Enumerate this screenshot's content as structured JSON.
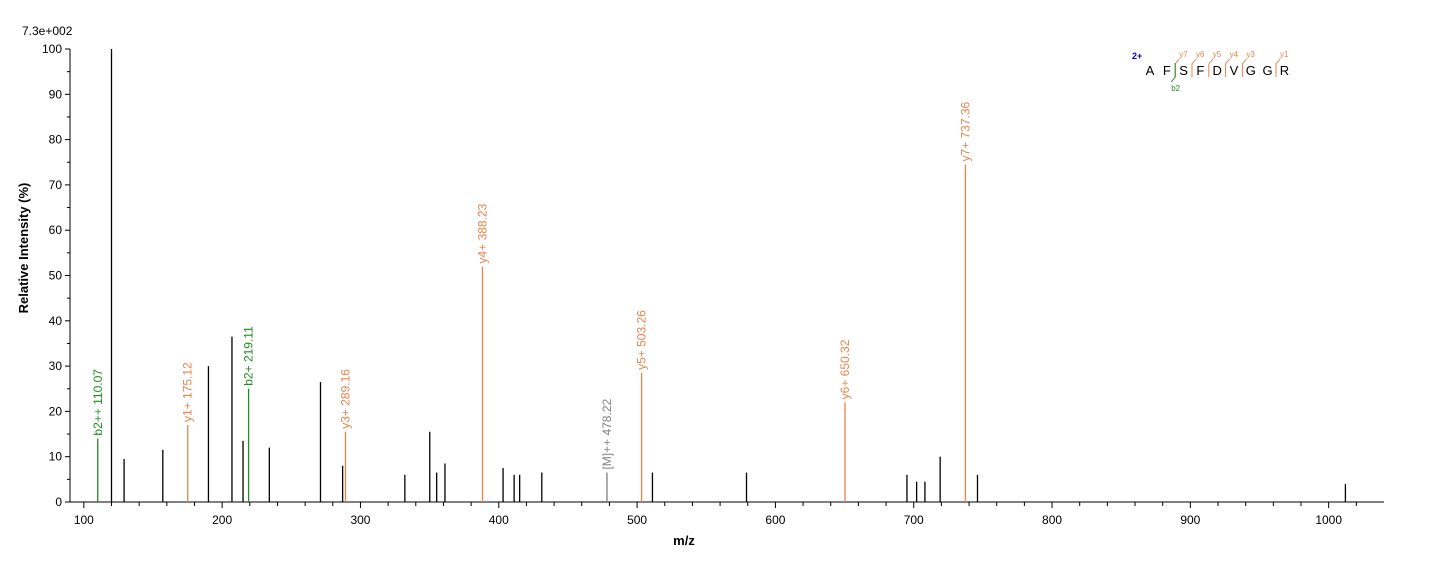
{
  "chart_data": {
    "type": "bar",
    "scale_label": "7.3e+002",
    "xlabel": "m/z",
    "ylabel": "Relative  Intensity (%)",
    "xlim": [
      90,
      1040
    ],
    "ylim": [
      0,
      100
    ],
    "x_ticks": [
      100,
      200,
      300,
      400,
      500,
      600,
      700,
      800,
      900,
      1000
    ],
    "y_ticks": [
      0,
      10,
      20,
      30,
      40,
      50,
      60,
      70,
      80,
      90,
      100
    ],
    "grid": false,
    "colors": {
      "unannotated": "#000000",
      "y_ion": "#E8834A",
      "b_ion": "#1E8C1E",
      "precursor": "#808080",
      "charge": "#0000C8"
    },
    "peaks": [
      {
        "mz": 110.07,
        "intensity": 14.0,
        "type": "b",
        "label": "b2++ 110.07"
      },
      {
        "mz": 120.0,
        "intensity": 100.0,
        "type": "other",
        "label": ""
      },
      {
        "mz": 129.1,
        "intensity": 9.5,
        "type": "other",
        "label": ""
      },
      {
        "mz": 157.1,
        "intensity": 11.5,
        "type": "other",
        "label": ""
      },
      {
        "mz": 175.12,
        "intensity": 17.0,
        "type": "y",
        "label": "y1+ 175.12"
      },
      {
        "mz": 190.1,
        "intensity": 30.0,
        "type": "other",
        "label": ""
      },
      {
        "mz": 207.1,
        "intensity": 36.5,
        "type": "other",
        "label": ""
      },
      {
        "mz": 215.1,
        "intensity": 13.5,
        "type": "other",
        "label": ""
      },
      {
        "mz": 219.11,
        "intensity": 25.0,
        "type": "b",
        "label": "b2+ 219.11"
      },
      {
        "mz": 234.1,
        "intensity": 12.0,
        "type": "other",
        "label": ""
      },
      {
        "mz": 271.1,
        "intensity": 26.5,
        "type": "other",
        "label": ""
      },
      {
        "mz": 287.1,
        "intensity": 8.0,
        "type": "other",
        "label": ""
      },
      {
        "mz": 289.16,
        "intensity": 15.5,
        "type": "y",
        "label": "y3+ 289.16"
      },
      {
        "mz": 332.1,
        "intensity": 6.0,
        "type": "other",
        "label": ""
      },
      {
        "mz": 350.1,
        "intensity": 15.5,
        "type": "other",
        "label": ""
      },
      {
        "mz": 355.1,
        "intensity": 6.5,
        "type": "other",
        "label": ""
      },
      {
        "mz": 361.1,
        "intensity": 8.5,
        "type": "other",
        "label": ""
      },
      {
        "mz": 388.23,
        "intensity": 52.0,
        "type": "y",
        "label": "y4+ 388.23"
      },
      {
        "mz": 403.1,
        "intensity": 7.5,
        "type": "other",
        "label": ""
      },
      {
        "mz": 411.1,
        "intensity": 6.0,
        "type": "other",
        "label": ""
      },
      {
        "mz": 415.1,
        "intensity": 6.0,
        "type": "other",
        "label": ""
      },
      {
        "mz": 431.1,
        "intensity": 6.5,
        "type": "other",
        "label": ""
      },
      {
        "mz": 478.22,
        "intensity": 6.5,
        "type": "precursor",
        "label": "[M]++ 478.22"
      },
      {
        "mz": 503.26,
        "intensity": 28.5,
        "type": "y",
        "label": "y5+ 503.26"
      },
      {
        "mz": 511.1,
        "intensity": 6.5,
        "type": "other",
        "label": ""
      },
      {
        "mz": 579.1,
        "intensity": 6.5,
        "type": "other",
        "label": ""
      },
      {
        "mz": 650.32,
        "intensity": 22.0,
        "type": "y",
        "label": "y6+ 650.32"
      },
      {
        "mz": 695.1,
        "intensity": 6.0,
        "type": "other",
        "label": ""
      },
      {
        "mz": 702.1,
        "intensity": 4.5,
        "type": "other",
        "label": ""
      },
      {
        "mz": 708.1,
        "intensity": 4.5,
        "type": "other",
        "label": ""
      },
      {
        "mz": 719.1,
        "intensity": 10.0,
        "type": "other",
        "label": ""
      },
      {
        "mz": 737.36,
        "intensity": 74.5,
        "type": "y",
        "label": "y7+ 737.36"
      },
      {
        "mz": 746.1,
        "intensity": 6.0,
        "type": "other",
        "label": ""
      },
      {
        "mz": 1012.1,
        "intensity": 4.0,
        "type": "other",
        "label": ""
      }
    ],
    "sequence": {
      "charge": "2+",
      "residues": [
        "A",
        "F",
        "S",
        "F",
        "D",
        "V",
        "G",
        "G",
        "R"
      ],
      "y_ions": [
        {
          "after_residue": 2,
          "label": "y7"
        },
        {
          "after_residue": 3,
          "label": "y6"
        },
        {
          "after_residue": 4,
          "label": "y5"
        },
        {
          "after_residue": 5,
          "label": "y4"
        },
        {
          "after_residue": 6,
          "label": "y3"
        },
        {
          "after_residue": 8,
          "label": "y1"
        }
      ],
      "b_ions": [
        {
          "after_residue": 2,
          "label": "b2"
        }
      ]
    }
  }
}
